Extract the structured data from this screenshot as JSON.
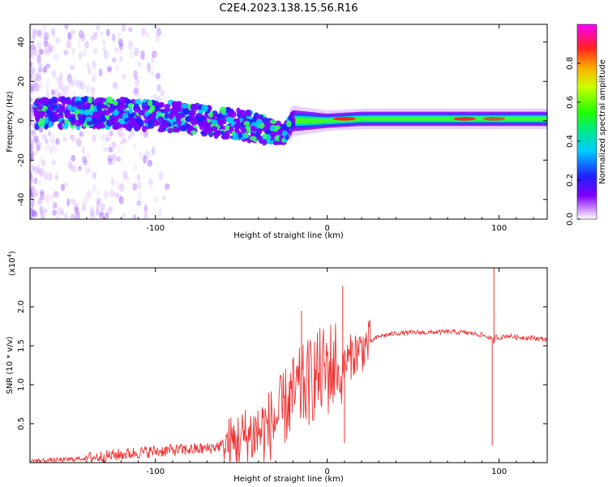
{
  "title": "C2E4.2023.138.15.56.R16",
  "chart_data": [
    {
      "type": "heatmap",
      "title": "",
      "xlabel": "Height of straight line (km)",
      "ylabel": "Frequency (Hz)",
      "xlim": [
        -173,
        128
      ],
      "ylim": [
        -50,
        49
      ],
      "x_ticks": [
        -100,
        0,
        100
      ],
      "y_ticks": [
        -40,
        -20,
        0,
        20,
        40
      ],
      "x_tick_labels": [
        "-100",
        "0",
        "100"
      ],
      "y_tick_labels": [
        "-40",
        "-20",
        "0",
        "20",
        "40"
      ],
      "grid": false,
      "colorbar": {
        "label": "Normalized spectral amplitude",
        "range": [
          0,
          1
        ],
        "ticks": [
          "0.0",
          "0.2",
          "0.4",
          "0.6",
          "0.8"
        ],
        "tick_values": [
          0.0,
          0.2,
          0.4,
          0.6,
          0.8
        ],
        "colormap": "rainbow: white-violet-purple-blue-cyan-green-yellow-orange-red-magenta"
      },
      "band_centerline": {
        "x": [
          -170,
          -150,
          -130,
          -110,
          -90,
          -70,
          -50,
          -35,
          -25,
          -20,
          -10,
          0,
          20,
          50,
          100,
          128
        ],
        "y": [
          4,
          4,
          4,
          3,
          2,
          0,
          -2,
          -5,
          -7,
          0,
          0,
          0,
          1,
          1,
          1,
          1
        ]
      },
      "band_halfwidth_hz": {
        "x": [
          -170,
          -100,
          -40,
          -20,
          0,
          128
        ],
        "y": [
          6,
          6,
          6,
          3,
          2,
          2
        ]
      },
      "peaks": [
        {
          "x": 10,
          "y": 1,
          "amplitude": 1.0
        },
        {
          "x": 80,
          "y": 1,
          "amplitude": 0.95
        },
        {
          "x": 97,
          "y": 1,
          "amplitude": 0.7
        }
      ]
    },
    {
      "type": "line",
      "title": "",
      "xlabel": "Height of straight line (km)",
      "ylabel": "SNR (10 * v/v)",
      "y_multiplier_label": "(x10",
      "y_multiplier_exponent": "4",
      "y_multiplier_close": ")",
      "xlim": [
        -173,
        128
      ],
      "ylim": [
        0,
        2.5
      ],
      "x_ticks": [
        -100,
        0,
        100
      ],
      "y_ticks": [
        0.5,
        1.0,
        1.5,
        2.0
      ],
      "x_tick_labels": [
        "-100",
        "0",
        "100"
      ],
      "y_tick_labels": [
        "0.5",
        "1.0",
        "1.5",
        "2.0"
      ],
      "grid": false,
      "color": "#ee3333",
      "series": [
        {
          "x": [
            -173,
            -150,
            -130,
            -110,
            -90,
            -70,
            -55,
            -45,
            -35,
            -28,
            -22,
            -18,
            -12,
            -8,
            -3,
            0,
            5,
            8,
            10,
            12,
            15,
            20,
            25,
            30,
            40,
            50,
            60,
            70,
            80,
            90,
            95,
            97,
            98,
            100,
            105,
            110,
            120,
            128
          ],
          "y": [
            0.02,
            0.04,
            0.08,
            0.13,
            0.16,
            0.18,
            0.25,
            0.35,
            0.45,
            0.6,
            0.8,
            0.9,
            1.0,
            1.1,
            1.15,
            1.2,
            1.25,
            1.0,
            1.3,
            1.3,
            1.4,
            1.45,
            1.55,
            1.62,
            1.66,
            1.67,
            1.67,
            1.68,
            1.67,
            1.64,
            1.6,
            1.55,
            1.62,
            1.6,
            1.63,
            1.61,
            1.6,
            1.58
          ]
        }
      ],
      "annotations": [
        {
          "x": -15,
          "y": 1.95
        },
        {
          "x": 9,
          "y": 2.27
        },
        {
          "x": 10,
          "y": 0.25
        },
        {
          "x": 97,
          "y": 2.5
        },
        {
          "x": 96,
          "y": 0.22
        }
      ]
    }
  ]
}
